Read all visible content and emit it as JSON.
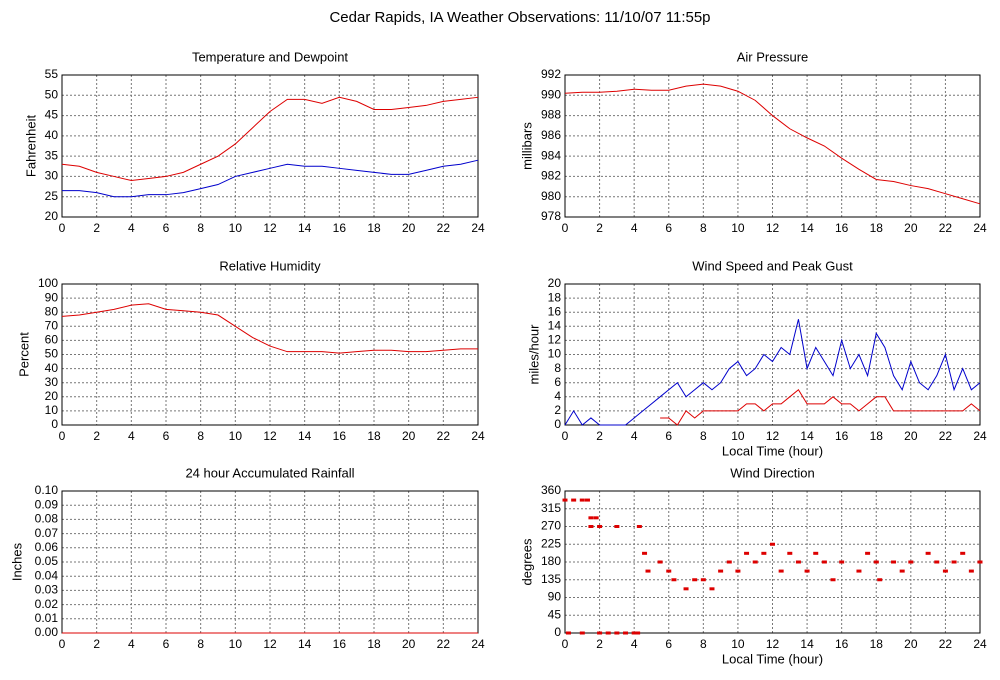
{
  "title": "Cedar Rapids, IA Weather Observations: 11/10/07 11:55p",
  "chart_data": [
    {
      "type": "line",
      "title": "Temperature and Dewpoint",
      "y_label": "Fahrenheit",
      "x": [
        0,
        1,
        2,
        3,
        4,
        5,
        6,
        7,
        8,
        9,
        10,
        11,
        12,
        13,
        14,
        15,
        16,
        17,
        18,
        19,
        20,
        21,
        22,
        23,
        24
      ],
      "series": [
        {
          "color": "#dd0000",
          "values": [
            33,
            32.5,
            31,
            30,
            29,
            29.5,
            30,
            31,
            33,
            35,
            38,
            42,
            46,
            49,
            49,
            48,
            49.5,
            48.5,
            46.5,
            46.5,
            47,
            47.5,
            48.5,
            49,
            49.5
          ]
        },
        {
          "color": "#0000cc",
          "values": [
            26.5,
            26.5,
            26,
            25,
            25,
            25.5,
            25.5,
            26,
            27,
            28,
            30,
            31,
            32,
            33,
            32.5,
            32.5,
            32,
            31.5,
            31,
            30.5,
            30.5,
            31.5,
            32.5,
            33,
            34
          ]
        }
      ],
      "xlim": [
        0,
        24
      ],
      "xticks": [
        0,
        2,
        4,
        6,
        8,
        10,
        12,
        14,
        16,
        18,
        20,
        22,
        24
      ],
      "ylim": [
        20,
        55
      ],
      "yticks": [
        20,
        25,
        30,
        35,
        40,
        45,
        50,
        55
      ],
      "grid": true
    },
    {
      "type": "line",
      "title": "Air Pressure",
      "y_label": "millibars",
      "x": [
        0,
        1,
        2,
        3,
        4,
        5,
        6,
        7,
        8,
        9,
        10,
        11,
        12,
        13,
        14,
        15,
        16,
        17,
        18,
        19,
        20,
        21,
        22,
        23,
        24
      ],
      "series": [
        {
          "color": "#dd0000",
          "values": [
            990.2,
            990.3,
            990.3,
            990.4,
            990.6,
            990.5,
            990.5,
            990.9,
            991.1,
            990.9,
            990.4,
            989.5,
            988,
            986.7,
            985.8,
            985,
            983.8,
            982.7,
            981.7,
            981.5,
            981.1,
            980.8,
            980.3,
            979.8,
            979.3
          ]
        }
      ],
      "xlim": [
        0,
        24
      ],
      "xticks": [
        0,
        2,
        4,
        6,
        8,
        10,
        12,
        14,
        16,
        18,
        20,
        22,
        24
      ],
      "ylim": [
        978,
        992
      ],
      "yticks": [
        978,
        980,
        982,
        984,
        986,
        988,
        990,
        992
      ],
      "grid": true
    },
    {
      "type": "line",
      "title": "Relative Humidity",
      "y_label": "Percent",
      "x": [
        0,
        1,
        2,
        3,
        4,
        5,
        6,
        7,
        8,
        9,
        10,
        11,
        12,
        13,
        14,
        15,
        16,
        17,
        18,
        19,
        20,
        21,
        22,
        23,
        24
      ],
      "series": [
        {
          "color": "#dd0000",
          "values": [
            77,
            78,
            80,
            82,
            85,
            86,
            82,
            81,
            80,
            78,
            70,
            62,
            56,
            52,
            52,
            52,
            51,
            52,
            53,
            53,
            52,
            52,
            53,
            54,
            54
          ]
        }
      ],
      "xlim": [
        0,
        24
      ],
      "xticks": [
        0,
        2,
        4,
        6,
        8,
        10,
        12,
        14,
        16,
        18,
        20,
        22,
        24
      ],
      "ylim": [
        0,
        100
      ],
      "yticks": [
        0,
        10,
        20,
        30,
        40,
        50,
        60,
        70,
        80,
        90,
        100
      ],
      "grid": true
    },
    {
      "type": "line",
      "title": "Wind Speed and Peak Gust",
      "y_label": "miles/hour",
      "x_label": "Local Time (hour)",
      "x": [
        0,
        0.5,
        1,
        1.5,
        2,
        2.5,
        3,
        3.5,
        4,
        4.5,
        5,
        5.5,
        6,
        6.5,
        7,
        7.5,
        8,
        8.5,
        9,
        9.5,
        10,
        10.5,
        11,
        11.5,
        12,
        12.5,
        13,
        13.5,
        14,
        14.5,
        15,
        15.5,
        16,
        16.5,
        17,
        17.5,
        18,
        18.5,
        19,
        19.5,
        20,
        20.5,
        21,
        21.5,
        22,
        22.5,
        23,
        23.5,
        24
      ],
      "series": [
        {
          "color": "#0000cc",
          "values": [
            0,
            2,
            0,
            1,
            0,
            0,
            0,
            0,
            1,
            2,
            3,
            4,
            5,
            6,
            4,
            5,
            6,
            5,
            6,
            8,
            9,
            7,
            8,
            10,
            9,
            11,
            10,
            15,
            8,
            11,
            9,
            7,
            12,
            8,
            10,
            7,
            13,
            11,
            7,
            5,
            9,
            6,
            5,
            7,
            10,
            5,
            8,
            5,
            6
          ]
        },
        {
          "color": "#dd0000",
          "values": [
            null,
            null,
            null,
            null,
            null,
            null,
            null,
            null,
            null,
            null,
            null,
            1,
            1,
            0,
            2,
            1,
            2,
            2,
            2,
            2,
            2,
            3,
            3,
            2,
            3,
            3,
            4,
            5,
            3,
            3,
            3,
            4,
            3,
            3,
            2,
            3,
            4,
            4,
            2,
            2,
            2,
            2,
            2,
            2,
            2,
            2,
            2,
            3,
            2
          ]
        }
      ],
      "xlim": [
        0,
        24
      ],
      "xticks": [
        0,
        2,
        4,
        6,
        8,
        10,
        12,
        14,
        16,
        18,
        20,
        22,
        24
      ],
      "ylim": [
        0,
        20
      ],
      "yticks": [
        0,
        2,
        4,
        6,
        8,
        10,
        12,
        14,
        16,
        18,
        20
      ],
      "grid": true
    },
    {
      "type": "line",
      "title": "24 hour Accumulated Rainfall",
      "y_label": "Inches",
      "x": [
        0,
        1,
        2,
        3,
        4,
        5,
        6,
        7,
        8,
        9,
        10,
        11,
        12,
        13,
        14,
        15,
        16,
        17,
        18,
        19,
        20,
        21,
        22,
        23,
        24
      ],
      "series": [
        {
          "color": "#dd0000",
          "values": [
            0,
            0,
            0,
            0,
            0,
            0,
            0,
            0,
            0,
            0,
            0,
            0,
            0,
            0,
            0,
            0,
            0,
            0,
            0,
            0,
            0,
            0,
            0,
            0,
            0
          ]
        }
      ],
      "xlim": [
        0,
        24
      ],
      "xticks": [
        0,
        2,
        4,
        6,
        8,
        10,
        12,
        14,
        16,
        18,
        20,
        22,
        24
      ],
      "ylim": [
        0,
        0.1
      ],
      "yticks": [
        {
          "value": 0,
          "label": "0.00"
        },
        {
          "value": 0.01,
          "label": "0.01"
        },
        {
          "value": 0.02,
          "label": "0.02"
        },
        {
          "value": 0.03,
          "label": "0.03"
        },
        {
          "value": 0.04,
          "label": "0.04"
        },
        {
          "value": 0.05,
          "label": "0.05"
        },
        {
          "value": 0.06,
          "label": "0.06"
        },
        {
          "value": 0.07,
          "label": "0.07"
        },
        {
          "value": 0.08,
          "label": "0.08"
        },
        {
          "value": 0.09,
          "label": "0.09"
        },
        {
          "value": 0.1,
          "label": "0.10"
        }
      ],
      "grid": true
    },
    {
      "type": "scatter",
      "title": "Wind Direction",
      "y_label": "degrees",
      "x_label": "Local Time (hour)",
      "x": [
        0,
        0.5,
        1,
        1.3,
        1.5,
        1.8,
        1.5,
        2,
        0.2,
        1,
        2,
        2.5,
        3,
        3.5,
        4,
        4.2,
        3,
        4.3,
        4.6,
        4.8,
        5.5,
        6,
        6.3,
        7,
        7.5,
        8,
        8.5,
        9,
        9.5,
        10,
        10.5,
        11,
        11.5,
        12,
        12.5,
        13,
        13.5,
        14,
        14.5,
        15,
        15.5,
        16,
        17,
        17.5,
        18,
        18.2,
        19,
        19.5,
        20,
        21,
        21.5,
        22,
        22.5,
        23,
        23.5,
        24
      ],
      "series": [
        {
          "color": "#dd0000",
          "values": [
            337,
            337,
            337,
            337,
            292,
            292,
            270,
            270,
            0,
            0,
            0,
            0,
            0,
            0,
            0,
            0,
            270,
            270,
            202,
            157,
            180,
            157,
            135,
            112,
            135,
            135,
            112,
            157,
            180,
            157,
            202,
            180,
            202,
            225,
            157,
            202,
            180,
            157,
            202,
            180,
            135,
            180,
            157,
            202,
            180,
            135,
            180,
            157,
            180,
            202,
            180,
            157,
            180,
            202,
            157,
            180
          ]
        }
      ],
      "xlim": [
        0,
        24
      ],
      "xticks": [
        0,
        2,
        4,
        6,
        8,
        10,
        12,
        14,
        16,
        18,
        20,
        22,
        24
      ],
      "ylim": [
        0,
        360
      ],
      "yticks": [
        0,
        45,
        90,
        135,
        180,
        225,
        270,
        315,
        360
      ],
      "grid": true
    }
  ]
}
